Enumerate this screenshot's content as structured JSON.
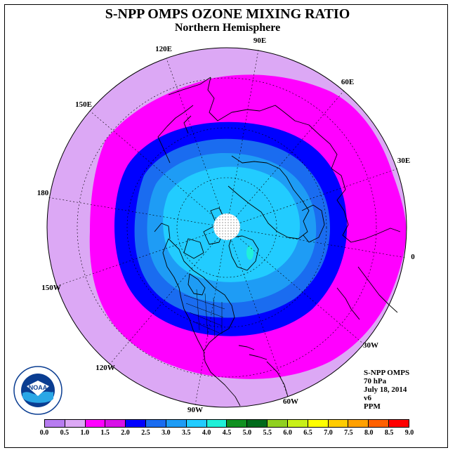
{
  "header": {
    "title": "S-NPP OMPS OZONE MIXING RATIO",
    "subtitle": "Northern Hemisphere"
  },
  "longitude_labels": [
    {
      "id": "lon-90e",
      "text": "90E"
    },
    {
      "id": "lon-60e",
      "text": "60E"
    },
    {
      "id": "lon-30e",
      "text": "30E"
    },
    {
      "id": "lon-0",
      "text": "0"
    },
    {
      "id": "lon-30w",
      "text": "30W"
    },
    {
      "id": "lon-60w",
      "text": "60W"
    },
    {
      "id": "lon-90w",
      "text": "90W"
    },
    {
      "id": "lon-120w",
      "text": "120W"
    },
    {
      "id": "lon-150w",
      "text": "150W"
    },
    {
      "id": "lon-180",
      "text": "180"
    },
    {
      "id": "lon-150e",
      "text": "150E"
    },
    {
      "id": "lon-120e",
      "text": "120E"
    }
  ],
  "info": {
    "instrument": "S-NPP OMPS",
    "level": "70 hPa",
    "date": "July 18, 2014",
    "version": "v6",
    "units": "PPM"
  },
  "colorbar": {
    "ticks": [
      "0.0",
      "0.5",
      "1.0",
      "1.5",
      "2.0",
      "2.5",
      "3.0",
      "3.5",
      "4.0",
      "4.5",
      "5.0",
      "5.5",
      "6.0",
      "6.5",
      "7.0",
      "7.5",
      "8.0",
      "8.5",
      "9.0"
    ],
    "colors": [
      "#b77cf0",
      "#dca8f5",
      "#ff00ff",
      "#d810e8",
      "#0000ff",
      "#1a6cf0",
      "#1e9cf5",
      "#22ccff",
      "#20f0d8",
      "#109020",
      "#006a1a",
      "#90d020",
      "#c8f018",
      "#ffff00",
      "#ffcc00",
      "#ffa000",
      "#ff6000",
      "#ff0000",
      "#8a5a44"
    ]
  },
  "map_colors": {
    "band_0_5_1_0": "#dca8f5",
    "band_1_0_1_5": "#ff00ff",
    "band_1_5_2_0": "#0000ff",
    "band_2_0_2_5": "#1a6cf0",
    "band_2_5_3_0": "#1e9cf5",
    "band_3_0_3_5": "#22ccff",
    "band_3_5_4_0": "#20f0d8",
    "polar_no_data": "#ffffff"
  },
  "logo": {
    "text": "NOAA"
  }
}
